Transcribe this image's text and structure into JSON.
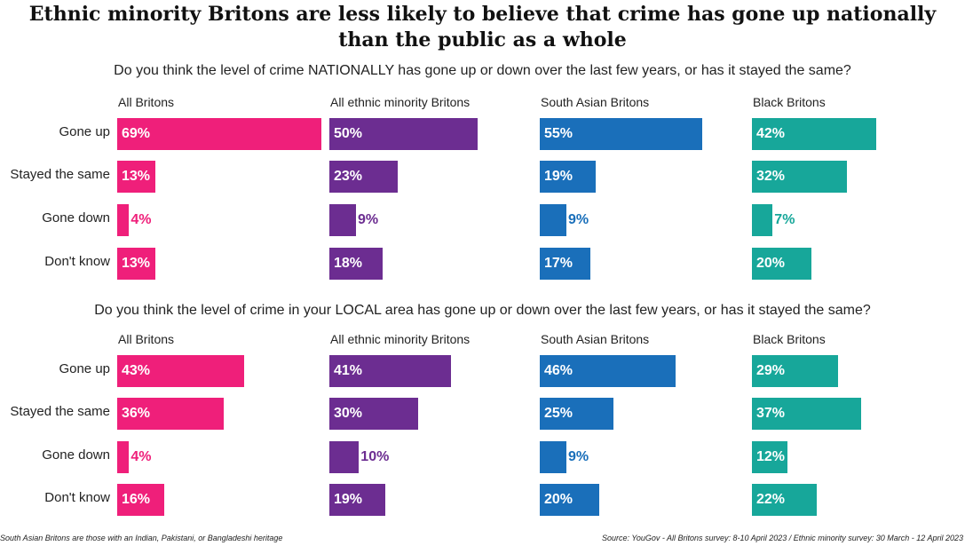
{
  "title_line1": "Ethnic minority Britons are less likely to believe that crime has gone up nationally",
  "title_line2": "than the public as a whole",
  "footnote_left": "South Asian Britons are those with an Indian, Pakistani, or Bangladeshi heritage",
  "footnote_right": "Source: YouGov - All Britons survey: 8-10 April 2023 / Ethnic minority survey: 30 March - 12 April 2023",
  "colors": {
    "All Britons": "#ef1f7a",
    "All ethnic minority Britons": "#6c2d91",
    "South Asian Britons": "#1a6fba",
    "Black Britons": "#17a79a"
  },
  "chart_data": [
    {
      "type": "bar",
      "title": "Do you think the level of crime NATIONALLY has gone up or down over the last few years, or has it stayed the same?",
      "categories": [
        "Gone up",
        "Stayed the same",
        "Gone down",
        "Don't know"
      ],
      "unit": "%",
      "xlim": [
        0,
        100
      ],
      "series": [
        {
          "name": "All Britons",
          "values": [
            69,
            13,
            4,
            13
          ]
        },
        {
          "name": "All ethnic minority Britons",
          "values": [
            50,
            23,
            9,
            18
          ]
        },
        {
          "name": "South Asian Britons",
          "values": [
            55,
            19,
            9,
            17
          ]
        },
        {
          "name": "Black Britons",
          "values": [
            42,
            32,
            7,
            20
          ]
        }
      ]
    },
    {
      "type": "bar",
      "title": "Do you think the level of crime in your LOCAL area has gone up or down over the last few years, or has it stayed the same?",
      "categories": [
        "Gone up",
        "Stayed the same",
        "Gone down",
        "Don't know"
      ],
      "unit": "%",
      "xlim": [
        0,
        100
      ],
      "series": [
        {
          "name": "All Britons",
          "values": [
            43,
            36,
            4,
            16
          ]
        },
        {
          "name": "All ethnic minority Britons",
          "values": [
            41,
            30,
            10,
            19
          ]
        },
        {
          "name": "South Asian Britons",
          "values": [
            46,
            25,
            9,
            20
          ]
        },
        {
          "name": "Black Britons",
          "values": [
            29,
            37,
            12,
            22
          ]
        }
      ]
    }
  ]
}
